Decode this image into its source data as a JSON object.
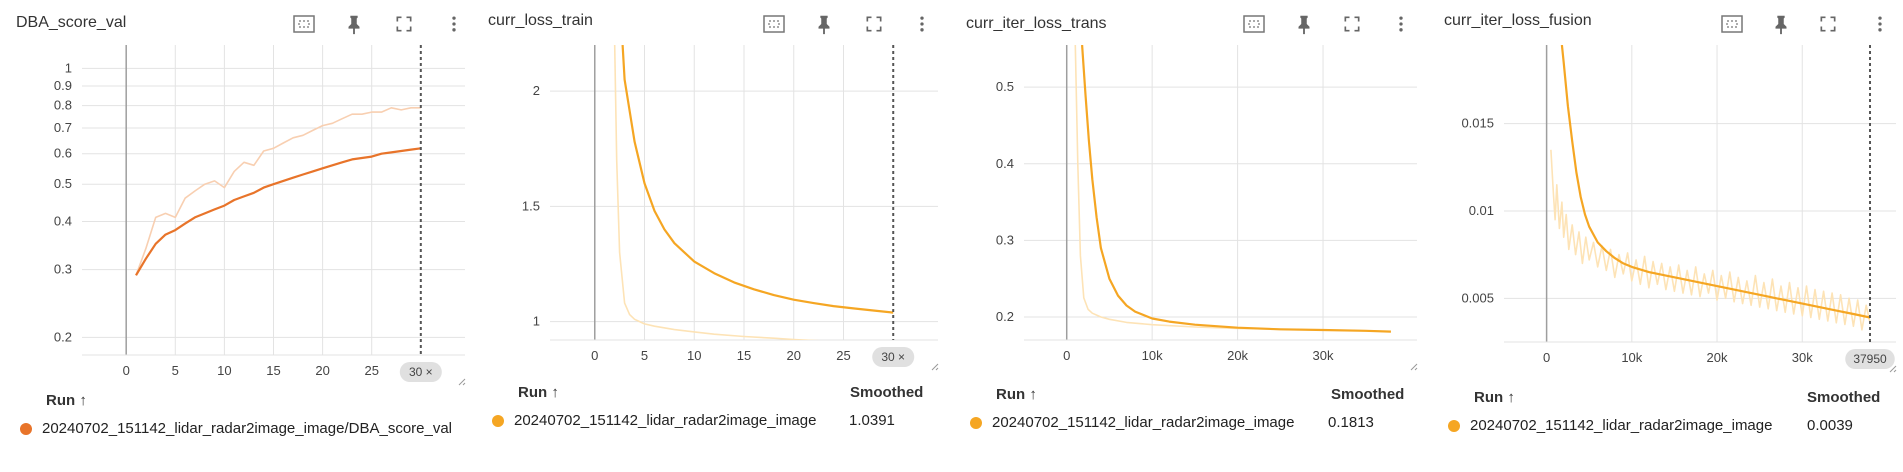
{
  "colors": {
    "dba_line": "#e8742a",
    "dba_raw": "#f8cfb1",
    "loss_line": "#f5a623",
    "loss_raw": "#fde3b6",
    "grid": "#e3e3e3",
    "axis": "#9e9e9e"
  },
  "toolbar_icons": [
    "fit-domain-icon",
    "pin-icon",
    "fullscreen-icon",
    "more-vert-icon"
  ],
  "run_header": "Run ↑",
  "smoothed_header": "Smoothed",
  "chart_data": [
    {
      "type": "line",
      "title": "DBA_score_val",
      "x_ticks": [
        "0",
        "5",
        "10",
        "15",
        "20",
        "25"
      ],
      "y_ticks": [
        "0.2",
        "0.3",
        "0.4",
        "0.5",
        "0.6",
        "0.7",
        "0.8",
        "0.9",
        "1"
      ],
      "yscale": "log",
      "xlim": [
        -4.5,
        34.5
      ],
      "ylim": [
        0.18,
        1.15
      ],
      "cursor_label": "30 ×",
      "cursor_x": 30,
      "legend": {
        "run": "20240702_151142_lidar_radar2image_image/DBA_score_val",
        "smoothed": ""
      },
      "series": [
        {
          "role": "raw",
          "x": [
            1,
            2,
            3,
            4,
            5,
            6,
            7,
            8,
            9,
            10,
            11,
            12,
            13,
            14,
            15,
            16,
            17,
            18,
            19,
            20,
            21,
            22,
            23,
            24,
            25,
            26,
            27,
            28,
            29,
            30
          ],
          "y": [
            0.29,
            0.34,
            0.41,
            0.42,
            0.41,
            0.46,
            0.48,
            0.5,
            0.51,
            0.49,
            0.54,
            0.57,
            0.56,
            0.61,
            0.62,
            0.64,
            0.66,
            0.67,
            0.69,
            0.71,
            0.72,
            0.74,
            0.76,
            0.76,
            0.77,
            0.77,
            0.79,
            0.78,
            0.79,
            0.79
          ]
        },
        {
          "role": "smoothed",
          "x": [
            1,
            2,
            3,
            4,
            5,
            6,
            7,
            8,
            9,
            10,
            11,
            12,
            13,
            14,
            15,
            16,
            17,
            18,
            19,
            20,
            21,
            22,
            23,
            24,
            25,
            26,
            27,
            28,
            29,
            30
          ],
          "y": [
            0.29,
            0.32,
            0.35,
            0.37,
            0.38,
            0.395,
            0.41,
            0.42,
            0.43,
            0.44,
            0.455,
            0.465,
            0.475,
            0.49,
            0.5,
            0.51,
            0.52,
            0.53,
            0.54,
            0.55,
            0.56,
            0.57,
            0.58,
            0.585,
            0.59,
            0.6,
            0.605,
            0.61,
            0.615,
            0.62
          ]
        }
      ]
    },
    {
      "type": "line",
      "title": "curr_loss_train",
      "x_ticks": [
        "0",
        "5",
        "10",
        "15",
        "20",
        "25"
      ],
      "y_ticks": [
        "1",
        "1.5",
        "2"
      ],
      "yscale": "linear",
      "xlim": [
        -4.5,
        34.5
      ],
      "ylim": [
        0.92,
        2.2
      ],
      "cursor_label": "30 ×",
      "cursor_x": 30,
      "legend": {
        "run": "20240702_151142_lidar_radar2image_image",
        "smoothed": "1.0391"
      },
      "series": [
        {
          "role": "raw",
          "x": [
            2,
            2.2,
            2.5,
            3,
            3.5,
            4,
            5,
            6,
            8,
            10,
            12,
            15,
            18,
            20,
            22,
            25,
            28,
            30
          ],
          "y": [
            2.2,
            1.7,
            1.3,
            1.08,
            1.03,
            1.01,
            0.99,
            0.98,
            0.965,
            0.955,
            0.945,
            0.935,
            0.928,
            0.922,
            0.918,
            0.912,
            0.907,
            0.903
          ]
        },
        {
          "role": "smoothed",
          "x": [
            2.8,
            3,
            4,
            5,
            6,
            7,
            8,
            10,
            12,
            14,
            16,
            18,
            20,
            22,
            24,
            26,
            28,
            30
          ],
          "y": [
            2.2,
            2.05,
            1.78,
            1.6,
            1.48,
            1.4,
            1.34,
            1.26,
            1.21,
            1.17,
            1.14,
            1.115,
            1.095,
            1.08,
            1.067,
            1.057,
            1.048,
            1.039
          ]
        }
      ]
    },
    {
      "type": "line",
      "title": "curr_iter_loss_trans",
      "x_ticks": [
        "0",
        "10k",
        "20k",
        "30k"
      ],
      "y_ticks": [
        "0.2",
        "0.3",
        "0.4",
        "0.5"
      ],
      "yscale": "linear",
      "xlim": [
        -5000,
        41000
      ],
      "ylim": [
        0.17,
        0.555
      ],
      "cursor_label": "",
      "cursor_x": null,
      "legend": {
        "run": "20240702_151142_lidar_radar2image_image",
        "smoothed": "0.1813"
      },
      "series": [
        {
          "role": "raw",
          "x": [
            1000,
            1300,
            1600,
            2000,
            2500,
            3000,
            4000,
            5000,
            7000,
            10000,
            15000,
            20000,
            25000,
            30000,
            35000,
            37950
          ],
          "y": [
            0.555,
            0.4,
            0.28,
            0.225,
            0.21,
            0.205,
            0.2,
            0.197,
            0.193,
            0.19,
            0.187,
            0.185,
            0.184,
            0.183,
            0.182,
            0.181
          ]
        },
        {
          "role": "smoothed",
          "x": [
            1800,
            2200,
            2600,
            3000,
            3500,
            4000,
            5000,
            6000,
            7000,
            8000,
            10000,
            12000,
            15000,
            20000,
            25000,
            30000,
            35000,
            37950
          ],
          "y": [
            0.555,
            0.49,
            0.43,
            0.38,
            0.33,
            0.29,
            0.25,
            0.228,
            0.215,
            0.207,
            0.198,
            0.194,
            0.19,
            0.186,
            0.184,
            0.183,
            0.182,
            0.181
          ]
        }
      ]
    },
    {
      "type": "line",
      "title": "curr_iter_loss_fusion",
      "x_ticks": [
        "0",
        "10k",
        "20k",
        "30k"
      ],
      "y_ticks": [
        "0.005",
        "0.01",
        "0.015"
      ],
      "yscale": "linear",
      "xlim": [
        -5000,
        41000
      ],
      "ylim": [
        0.0025,
        0.0195
      ],
      "cursor_label": "37950",
      "cursor_x": 37950,
      "legend": {
        "run": "20240702_151142_lidar_radar2image_image",
        "smoothed": "0.0039"
      },
      "series": [
        {
          "role": "raw",
          "x": [
            500,
            800,
            1000,
            1200,
            1500,
            1800,
            2000,
            2300,
            2600,
            3000,
            3400,
            3800,
            4200,
            4600,
            5000,
            5500,
            6000,
            6500,
            7000,
            7500,
            8000,
            8500,
            9000,
            9500,
            10000,
            10500,
            11000,
            11500,
            12000,
            12500,
            13000,
            13500,
            14000,
            14500,
            15000,
            15500,
            16000,
            16500,
            17000,
            17500,
            18000,
            18500,
            19000,
            19500,
            20000,
            20500,
            21000,
            21500,
            22000,
            22500,
            23000,
            23500,
            24000,
            24500,
            25000,
            25500,
            26000,
            26500,
            27000,
            27500,
            28000,
            28500,
            29000,
            29500,
            30000,
            30500,
            31000,
            31500,
            32000,
            32500,
            33000,
            33500,
            34000,
            34500,
            35000,
            35500,
            36000,
            36500,
            37000,
            37500,
            37950
          ],
          "y": [
            0.0135,
            0.011,
            0.0095,
            0.0115,
            0.009,
            0.0105,
            0.0085,
            0.0098,
            0.0078,
            0.0092,
            0.0075,
            0.0088,
            0.007,
            0.0085,
            0.0072,
            0.0082,
            0.0068,
            0.008,
            0.0066,
            0.0078,
            0.0062,
            0.0075,
            0.0064,
            0.0076,
            0.006,
            0.0072,
            0.0058,
            0.0074,
            0.0056,
            0.0071,
            0.0058,
            0.007,
            0.0055,
            0.0068,
            0.0054,
            0.0069,
            0.0053,
            0.0066,
            0.0052,
            0.0068,
            0.0051,
            0.0064,
            0.0053,
            0.0066,
            0.0049,
            0.0063,
            0.005,
            0.0065,
            0.0048,
            0.0062,
            0.0047,
            0.006,
            0.0046,
            0.0063,
            0.0045,
            0.0059,
            0.0044,
            0.0061,
            0.0043,
            0.0057,
            0.0042,
            0.0059,
            0.0041,
            0.0056,
            0.004,
            0.0057,
            0.0039,
            0.0055,
            0.0038,
            0.0054,
            0.0037,
            0.0053,
            0.0036,
            0.0052,
            0.0035,
            0.005,
            0.0034,
            0.0049,
            0.0032,
            0.0046,
            0.0036
          ]
        },
        {
          "role": "smoothed",
          "x": [
            1800,
            2000,
            2500,
            3000,
            3500,
            4000,
            4500,
            5000,
            6000,
            7000,
            8000,
            9000,
            10000,
            12000,
            14000,
            16000,
            18000,
            20000,
            22000,
            24000,
            26000,
            28000,
            30000,
            32000,
            34000,
            36000,
            37950
          ],
          "y": [
            0.0195,
            0.0185,
            0.016,
            0.014,
            0.0122,
            0.0108,
            0.0098,
            0.0091,
            0.0082,
            0.0077,
            0.0073,
            0.007,
            0.0068,
            0.0065,
            0.0063,
            0.0061,
            0.0059,
            0.0057,
            0.0055,
            0.0053,
            0.0051,
            0.0049,
            0.0047,
            0.0045,
            0.0043,
            0.0041,
            0.0039
          ]
        }
      ]
    }
  ]
}
